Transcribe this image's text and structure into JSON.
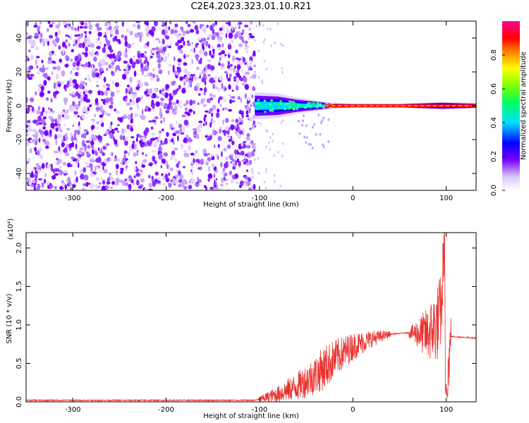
{
  "title": "C2E4.2023.323.01.10.R21",
  "chart_data": [
    {
      "type": "heatmap",
      "xlabel": "Height of straight line (km)",
      "ylabel": "Frequency (Hz)",
      "xlim": [
        -350,
        132
      ],
      "ylim": [
        -50,
        50
      ],
      "xticks": [
        -300,
        -200,
        -100,
        0,
        100
      ],
      "yticks": [
        -40,
        -20,
        0,
        20,
        40
      ],
      "noise_region_x": [
        -350,
        -105
      ],
      "signal_band": [
        {
          "x": -105,
          "width_hz": 10
        },
        {
          "x": -80,
          "width_hz": 9
        },
        {
          "x": -60,
          "width_hz": 6
        },
        {
          "x": -40,
          "width_hz": 4
        },
        {
          "x": -20,
          "width_hz": 2
        },
        {
          "x": 0,
          "width_hz": 1.5
        },
        {
          "x": 50,
          "width_hz": 1.5
        },
        {
          "x": 95,
          "width_hz": 3
        },
        {
          "x": 132,
          "width_hz": 2
        }
      ],
      "colorbar": {
        "label": "Normalized spectral amplitude",
        "range": [
          0,
          1
        ],
        "ticks": [
          "0.0",
          "0.2",
          "0.4",
          "0.6",
          "0.8"
        ]
      }
    },
    {
      "type": "line",
      "xlabel": "Height of straight line (km)",
      "ylabel": "SNR (10 * v/v)",
      "yscale_label": "(x10⁴)",
      "xlim": [
        -350,
        132
      ],
      "ylim": [
        0,
        2.2
      ],
      "xticks": [
        -300,
        -200,
        -100,
        0,
        100
      ],
      "yticks": [
        0.0,
        0.5,
        1.0,
        1.5,
        2.0
      ],
      "ytick_labels": [
        "0.0",
        "0.5",
        "1.0",
        "1.5",
        "2.0"
      ],
      "series_color": "#e8332f",
      "x": [
        -350,
        -200,
        -105,
        -95,
        -80,
        -60,
        -40,
        -25,
        -15,
        0,
        20,
        40,
        60,
        80,
        90,
        95,
        98,
        100,
        105,
        132
      ],
      "y": [
        0.02,
        0.02,
        0.02,
        0.05,
        0.1,
        0.2,
        0.35,
        0.5,
        0.6,
        0.72,
        0.82,
        0.88,
        0.9,
        0.88,
        1.0,
        1.2,
        2.15,
        0.1,
        0.85,
        0.83
      ]
    }
  ]
}
